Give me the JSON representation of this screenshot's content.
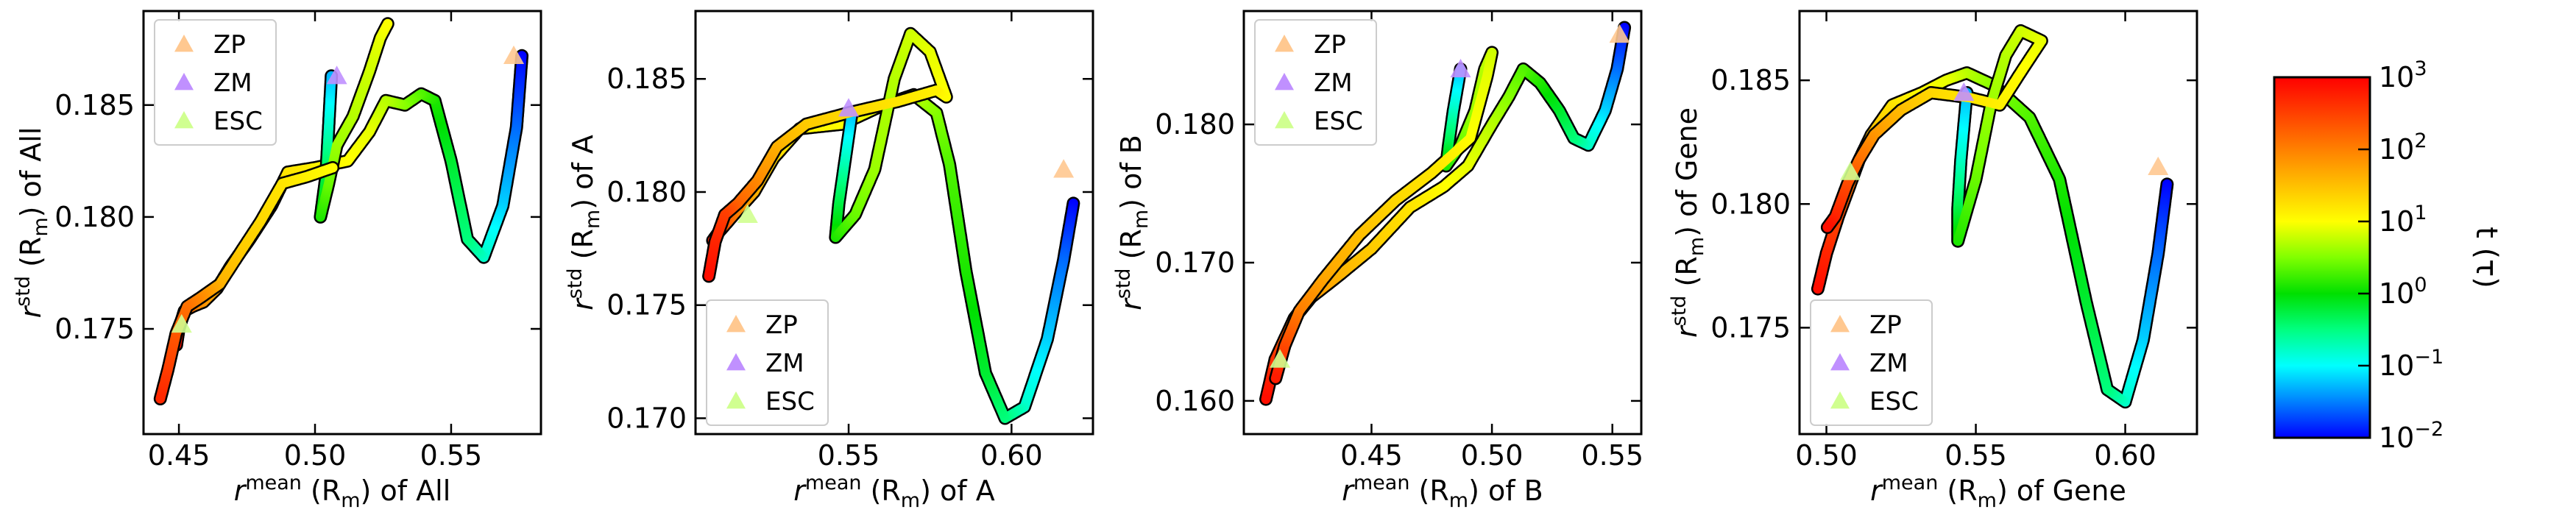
{
  "colors": {
    "stops": [
      "#0000ff",
      "#0080ff",
      "#00ffff",
      "#00ff80",
      "#00e000",
      "#80ff00",
      "#ffff00",
      "#ffc000",
      "#ff8000",
      "#ff4000",
      "#ff0000"
    ],
    "ZP": "#ffc890",
    "ZM": "#c090ff",
    "ESC": "#d0ff90"
  },
  "colorbar": {
    "label": "t (τ)",
    "tick_labels": [
      "10^3",
      "10^2",
      "10^1",
      "10^0",
      "10^-1",
      "10^-2"
    ],
    "log_range": [
      -2,
      3
    ]
  },
  "chart_data": [
    {
      "type": "scatter",
      "id": "all",
      "xlabel": {
        "prefix": "r",
        "sup": "mean",
        "mid": " (R",
        "sub": "m",
        "suffix": ") of All"
      },
      "ylabel": {
        "prefix": "r",
        "sup": "std",
        "mid": " (R",
        "sub": "m",
        "suffix": ") of All"
      },
      "xlim": [
        0.437,
        0.583
      ],
      "ylim": [
        0.1703,
        0.1892
      ],
      "xticks": [
        0.45,
        0.5,
        0.55
      ],
      "xtick_labels": [
        "0.45",
        "0.50",
        "0.55"
      ],
      "yticks": [
        0.175,
        0.18,
        0.185
      ],
      "ytick_labels": [
        "0.175",
        "0.180",
        "0.185"
      ],
      "legend_position": "top-left",
      "legend": [
        "ZP",
        "ZM",
        "ESC"
      ],
      "markers": [
        {
          "series": "ZP",
          "x": 0.573,
          "y": 0.1872
        },
        {
          "series": "ZM",
          "x": 0.508,
          "y": 0.1863
        },
        {
          "series": "ESC",
          "x": 0.451,
          "y": 0.1752
        }
      ],
      "trajectories": [
        [
          [
            0.576,
            0.1872,
            -2
          ],
          [
            0.574,
            0.184,
            -1.6
          ],
          [
            0.569,
            0.1805,
            -1.2
          ],
          [
            0.562,
            0.1782,
            -0.8
          ],
          [
            0.556,
            0.179,
            -0.5
          ],
          [
            0.55,
            0.1825,
            -0.2
          ],
          [
            0.544,
            0.1852,
            0.1
          ],
          [
            0.539,
            0.1855,
            0.3
          ],
          [
            0.533,
            0.185,
            0.5
          ],
          [
            0.526,
            0.1852,
            0.7
          ],
          [
            0.52,
            0.1838,
            0.9
          ],
          [
            0.512,
            0.1825,
            1.0
          ],
          [
            0.5,
            0.1822,
            1.1
          ],
          [
            0.49,
            0.182,
            1.2
          ],
          [
            0.484,
            0.1805,
            1.3
          ],
          [
            0.476,
            0.179,
            1.4
          ],
          [
            0.469,
            0.1778,
            1.5
          ],
          [
            0.464,
            0.1768,
            1.6
          ],
          [
            0.459,
            0.1762,
            1.8
          ],
          [
            0.455,
            0.176,
            2.0
          ],
          [
            0.452,
            0.1758,
            2.3
          ],
          [
            0.45,
            0.175,
            2.6
          ],
          [
            0.449,
            0.1742,
            2.9
          ]
        ],
        [
          [
            0.506,
            0.1863,
            -1.3
          ],
          [
            0.505,
            0.184,
            -0.8
          ],
          [
            0.504,
            0.1818,
            -0.3
          ],
          [
            0.502,
            0.18,
            0.1
          ],
          [
            0.505,
            0.1815,
            0.4
          ],
          [
            0.508,
            0.1832,
            0.6
          ],
          [
            0.514,
            0.1845,
            0.7
          ],
          [
            0.52,
            0.1865,
            0.8
          ],
          [
            0.524,
            0.188,
            0.9
          ],
          [
            0.527,
            0.1887,
            1.0
          ]
        ],
        [
          [
            0.5065,
            0.1822,
            1.0
          ],
          [
            0.497,
            0.1818,
            1.1
          ],
          [
            0.488,
            0.1815,
            1.2
          ],
          [
            0.48,
            0.1798,
            1.3
          ],
          [
            0.473,
            0.1785,
            1.4
          ],
          [
            0.465,
            0.177,
            1.6
          ],
          [
            0.458,
            0.1764,
            1.9
          ],
          [
            0.453,
            0.176,
            2.1
          ],
          [
            0.449,
            0.1748,
            2.3
          ],
          [
            0.446,
            0.1732,
            2.5
          ],
          [
            0.443,
            0.1718,
            2.7
          ]
        ]
      ]
    },
    {
      "type": "scatter",
      "id": "a",
      "xlabel": {
        "prefix": "r",
        "sup": "mean",
        "mid": " (R",
        "sub": "m",
        "suffix": ") of A"
      },
      "ylabel": {
        "prefix": "r",
        "sup": "std",
        "mid": " (R",
        "sub": "m",
        "suffix": ") of A"
      },
      "xlim": [
        0.503,
        0.625
      ],
      "ylim": [
        0.1693,
        0.188
      ],
      "xticks": [
        0.55,
        0.6
      ],
      "xtick_labels": [
        "0.55",
        "0.60"
      ],
      "yticks": [
        0.17,
        0.175,
        0.18,
        0.185
      ],
      "ytick_labels": [
        "0.170",
        "0.175",
        "0.180",
        "0.185"
      ],
      "legend_position": "bottom-left",
      "legend": [
        "ZP",
        "ZM",
        "ESC"
      ],
      "markers": [
        {
          "series": "ZP",
          "x": 0.616,
          "y": 0.181
        },
        {
          "series": "ZM",
          "x": 0.55,
          "y": 0.1837
        },
        {
          "series": "ESC",
          "x": 0.519,
          "y": 0.179
        }
      ],
      "trajectories": [
        [
          [
            0.619,
            0.1795,
            -2
          ],
          [
            0.616,
            0.177,
            -1.6
          ],
          [
            0.611,
            0.1735,
            -1.2
          ],
          [
            0.604,
            0.1705,
            -0.8
          ],
          [
            0.598,
            0.17,
            -0.5
          ],
          [
            0.592,
            0.172,
            -0.2
          ],
          [
            0.586,
            0.1765,
            0.1
          ],
          [
            0.581,
            0.1812,
            0.3
          ],
          [
            0.577,
            0.1835,
            0.5
          ],
          [
            0.57,
            0.1843,
            0.7
          ],
          [
            0.56,
            0.1838,
            0.9
          ],
          [
            0.548,
            0.183,
            1.0
          ],
          [
            0.535,
            0.1828,
            1.1
          ],
          [
            0.527,
            0.1815,
            1.3
          ],
          [
            0.521,
            0.18,
            1.6
          ],
          [
            0.516,
            0.1792,
            1.9
          ],
          [
            0.513,
            0.1787,
            2.2
          ],
          [
            0.51,
            0.1782,
            2.5
          ],
          [
            0.508,
            0.1778,
            2.8
          ]
        ],
        [
          [
            0.551,
            0.1835,
            -1.3
          ],
          [
            0.549,
            0.1815,
            -0.8
          ],
          [
            0.547,
            0.1795,
            -0.3
          ],
          [
            0.546,
            0.178,
            0.1
          ],
          [
            0.552,
            0.179,
            0.4
          ],
          [
            0.558,
            0.181,
            0.6
          ],
          [
            0.564,
            0.185,
            0.7
          ],
          [
            0.569,
            0.187,
            0.8
          ],
          [
            0.575,
            0.1862,
            0.9
          ],
          [
            0.58,
            0.1842,
            1.0
          ],
          [
            0.577,
            0.1845,
            1.1
          ],
          [
            0.565,
            0.184,
            1.2
          ],
          [
            0.55,
            0.1835,
            1.3
          ],
          [
            0.537,
            0.183,
            1.4
          ],
          [
            0.528,
            0.182,
            1.6
          ],
          [
            0.522,
            0.1805,
            1.9
          ],
          [
            0.516,
            0.1795,
            2.2
          ],
          [
            0.512,
            0.179,
            2.5
          ],
          [
            0.509,
            0.1778,
            2.7
          ],
          [
            0.507,
            0.1762,
            2.9
          ]
        ]
      ]
    },
    {
      "type": "scatter",
      "id": "b",
      "xlabel": {
        "prefix": "r",
        "sup": "mean",
        "mid": " (R",
        "sub": "m",
        "suffix": ") of B"
      },
      "ylabel": {
        "prefix": "r",
        "sup": "std",
        "mid": " (R",
        "sub": "m",
        "suffix": ") of B"
      },
      "xlim": [
        0.397,
        0.562
      ],
      "ylim": [
        0.1576,
        0.1882
      ],
      "xticks": [
        0.45,
        0.5,
        0.55
      ],
      "xtick_labels": [
        "0.45",
        "0.50",
        "0.55"
      ],
      "yticks": [
        0.16,
        0.17,
        0.18
      ],
      "ytick_labels": [
        "0.160",
        "0.170",
        "0.180"
      ],
      "legend_position": "top-left",
      "legend": [
        "ZP",
        "ZM",
        "ESC"
      ],
      "markers": [
        {
          "series": "ZP",
          "x": 0.553,
          "y": 0.1865
        },
        {
          "series": "ZM",
          "x": 0.487,
          "y": 0.184
        },
        {
          "series": "ESC",
          "x": 0.412,
          "y": 0.163
        }
      ],
      "trajectories": [
        [
          [
            0.555,
            0.187,
            -2
          ],
          [
            0.552,
            0.184,
            -1.6
          ],
          [
            0.547,
            0.181,
            -1.2
          ],
          [
            0.54,
            0.1785,
            -0.8
          ],
          [
            0.534,
            0.179,
            -0.5
          ],
          [
            0.528,
            0.181,
            -0.2
          ],
          [
            0.52,
            0.183,
            0.1
          ],
          [
            0.513,
            0.184,
            0.3
          ],
          [
            0.507,
            0.182,
            0.5
          ],
          [
            0.5,
            0.18,
            0.7
          ],
          [
            0.49,
            0.177,
            0.9
          ],
          [
            0.48,
            0.1755,
            1.0
          ],
          [
            0.466,
            0.174,
            1.2
          ],
          [
            0.45,
            0.171,
            1.4
          ],
          [
            0.436,
            0.169,
            1.6
          ],
          [
            0.425,
            0.1675,
            1.8
          ],
          [
            0.418,
            0.166,
            2.0
          ],
          [
            0.414,
            0.1645,
            2.3
          ],
          [
            0.41,
            0.163,
            2.6
          ],
          [
            0.406,
            0.16,
            2.9
          ]
        ],
        [
          [
            0.487,
            0.184,
            -1.3
          ],
          [
            0.484,
            0.181,
            -0.8
          ],
          [
            0.482,
            0.1785,
            -0.3
          ],
          [
            0.481,
            0.177,
            0.1
          ],
          [
            0.487,
            0.1785,
            0.4
          ],
          [
            0.493,
            0.181,
            0.6
          ],
          [
            0.497,
            0.184,
            0.7
          ],
          [
            0.5,
            0.1852,
            0.8
          ],
          [
            0.498,
            0.1835,
            0.9
          ],
          [
            0.491,
            0.179,
            1.0
          ],
          [
            0.475,
            0.1765,
            1.2
          ],
          [
            0.46,
            0.1745,
            1.3
          ],
          [
            0.445,
            0.172,
            1.5
          ],
          [
            0.43,
            0.1688,
            1.7
          ],
          [
            0.42,
            0.1665,
            2.0
          ],
          [
            0.414,
            0.164,
            2.4
          ],
          [
            0.41,
            0.1615,
            2.8
          ]
        ]
      ]
    },
    {
      "type": "scatter",
      "id": "gene",
      "xlabel": {
        "prefix": "r",
        "sup": "mean",
        "mid": " (R",
        "sub": "m",
        "suffix": ") of Gene"
      },
      "ylabel": {
        "prefix": "r",
        "sup": "std",
        "mid": " (R",
        "sub": "m",
        "suffix": ") of Gene"
      },
      "xlim": [
        0.491,
        0.624
      ],
      "ylim": [
        0.1707,
        0.1878
      ],
      "xticks": [
        0.5,
        0.55,
        0.6
      ],
      "xtick_labels": [
        "0.50",
        "0.55",
        "0.60"
      ],
      "yticks": [
        0.175,
        0.18,
        0.185
      ],
      "ytick_labels": [
        "0.175",
        "0.180",
        "0.185"
      ],
      "legend_position": "bottom-left",
      "legend": [
        "ZP",
        "ZM",
        "ESC"
      ],
      "markers": [
        {
          "series": "ZP",
          "x": 0.611,
          "y": 0.1815
        },
        {
          "series": "ZM",
          "x": 0.546,
          "y": 0.1845
        },
        {
          "series": "ESC",
          "x": 0.508,
          "y": 0.1813
        }
      ],
      "trajectories": [
        [
          [
            0.614,
            0.1808,
            -2
          ],
          [
            0.611,
            0.178,
            -1.6
          ],
          [
            0.606,
            0.1745,
            -1.2
          ],
          [
            0.6,
            0.172,
            -0.8
          ],
          [
            0.594,
            0.1725,
            -0.5
          ],
          [
            0.587,
            0.176,
            -0.2
          ],
          [
            0.578,
            0.181,
            0.1
          ],
          [
            0.568,
            0.1835,
            0.3
          ],
          [
            0.556,
            0.1848,
            0.5
          ],
          [
            0.547,
            0.1853,
            0.7
          ],
          [
            0.54,
            0.185,
            0.9
          ],
          [
            0.532,
            0.1845,
            1.0
          ],
          [
            0.522,
            0.184,
            1.2
          ],
          [
            0.515,
            0.1828,
            1.5
          ],
          [
            0.511,
            0.1818,
            1.8
          ],
          [
            0.508,
            0.1808,
            2.1
          ],
          [
            0.504,
            0.1795,
            2.4
          ],
          [
            0.5,
            0.178,
            2.7
          ],
          [
            0.497,
            0.1765,
            2.9
          ]
        ],
        [
          [
            0.547,
            0.1845,
            -1.3
          ],
          [
            0.545,
            0.1818,
            -0.8
          ],
          [
            0.544,
            0.1798,
            -0.3
          ],
          [
            0.544,
            0.1785,
            0.1
          ],
          [
            0.55,
            0.181,
            0.4
          ],
          [
            0.555,
            0.184,
            0.6
          ],
          [
            0.56,
            0.186,
            0.7
          ],
          [
            0.565,
            0.187,
            0.8
          ],
          [
            0.572,
            0.1866,
            0.9
          ],
          [
            0.566,
            0.1855,
            1.0
          ],
          [
            0.558,
            0.184,
            1.1
          ],
          [
            0.548,
            0.1843,
            1.2
          ],
          [
            0.535,
            0.1845,
            1.3
          ],
          [
            0.525,
            0.1838,
            1.5
          ],
          [
            0.516,
            0.1828,
            1.8
          ],
          [
            0.511,
            0.1818,
            2.1
          ],
          [
            0.507,
            0.1808,
            2.4
          ],
          [
            0.503,
            0.1795,
            2.7
          ],
          [
            0.5,
            0.179,
            2.9
          ]
        ]
      ]
    }
  ]
}
